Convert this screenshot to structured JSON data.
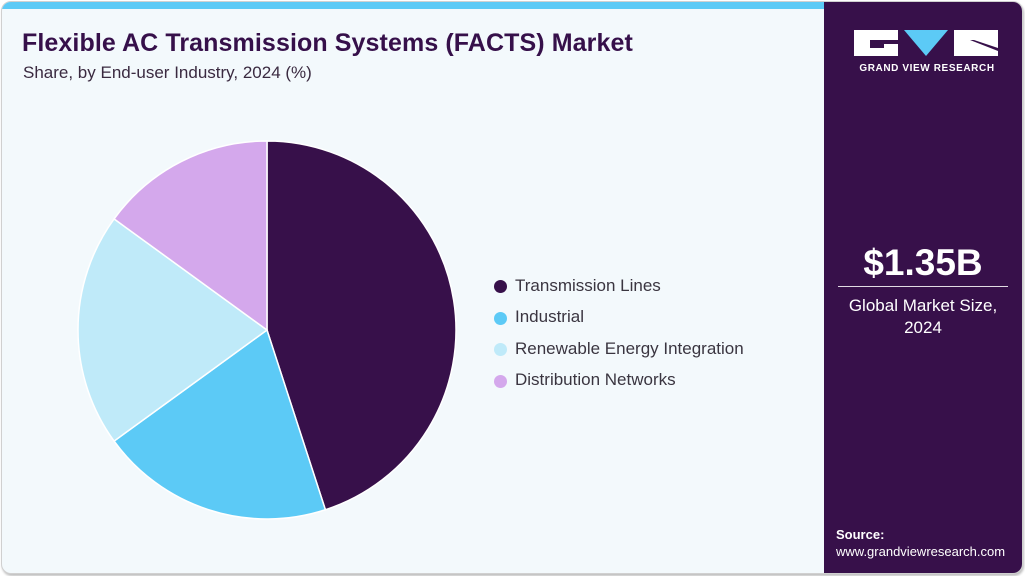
{
  "header": {
    "title": "Flexible AC Transmission Systems (FACTS) Market",
    "subtitle": "Share, by End-user Industry, 2024 (%)"
  },
  "brand": {
    "name": "GRAND VIEW RESEARCH",
    "colors": {
      "primary": "#37104a",
      "accent": "#5ccaf6"
    }
  },
  "sidebar": {
    "market_value": "$1.35B",
    "market_label_line1": "Global Market Size,",
    "market_label_line2": "2024",
    "source_label": "Source:",
    "source_url": "www.grandviewresearch.com"
  },
  "legend": {
    "items": [
      {
        "label": "Transmission Lines",
        "color": "#37104a"
      },
      {
        "label": "Industrial",
        "color": "#5ccaf6"
      },
      {
        "label": "Renewable Energy Integration",
        "color": "#bfeaf9"
      },
      {
        "label": "Distribution Networks",
        "color": "#d4a8ec"
      }
    ]
  },
  "chart_data": {
    "type": "pie",
    "title": "Flexible AC Transmission Systems (FACTS) Market",
    "subtitle": "Share, by End-user Industry, 2024 (%)",
    "categories": [
      "Transmission Lines",
      "Industrial",
      "Renewable Energy Integration",
      "Distribution Networks"
    ],
    "values": [
      45,
      20,
      20,
      15
    ],
    "colors": [
      "#37104a",
      "#5ccaf6",
      "#bfeaf9",
      "#d4a8ec"
    ],
    "start_angle": "12 o'clock, clockwise",
    "legend_position": "right",
    "unit": "%"
  }
}
